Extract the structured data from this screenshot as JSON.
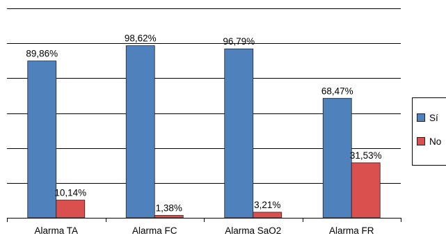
{
  "chart_data": {
    "type": "bar",
    "categories": [
      "Alarma TA",
      "Alarma FC",
      "Alarma SaO2",
      "Alarma FR"
    ],
    "series": [
      {
        "name": "Sí",
        "values": [
          89.86,
          98.62,
          96.79,
          68.47
        ],
        "labels": [
          "89,86%",
          "98,62%",
          "96,79%",
          "68,47%"
        ],
        "color": "#4F81BD"
      },
      {
        "name": "No",
        "values": [
          10.14,
          1.38,
          3.21,
          31.53
        ],
        "labels": [
          "10,14%",
          "1,38%",
          "3,21%",
          "31,53%"
        ],
        "color": "#D9504F"
      }
    ],
    "ylim": [
      0,
      120
    ],
    "grid": true,
    "legend": "right"
  }
}
